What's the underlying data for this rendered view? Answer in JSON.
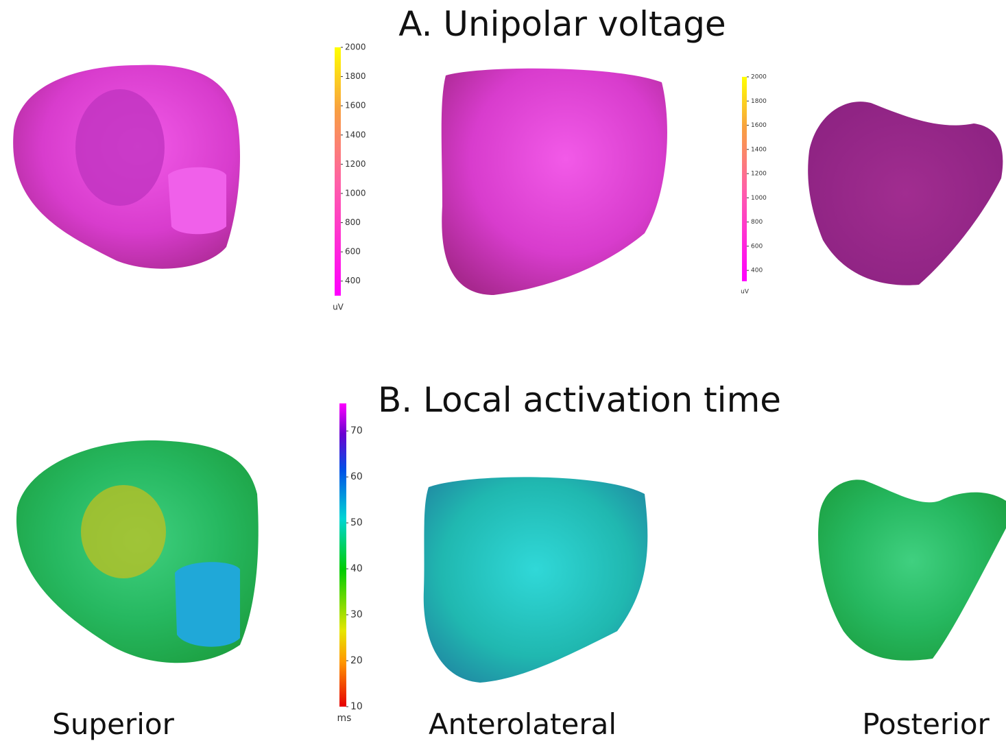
{
  "panel_a": {
    "title": "A. Unipolar voltage",
    "colorbars": [
      {
        "unit": "uV",
        "range": [
          300,
          2000
        ],
        "ticks": [
          400,
          600,
          800,
          1000,
          1200,
          1400,
          1600,
          1800,
          2000
        ]
      },
      {
        "unit": "uV",
        "range": [
          310,
          2000
        ],
        "ticks": [
          400,
          600,
          800,
          1000,
          1200,
          1400,
          1600,
          1800,
          2000
        ]
      }
    ]
  },
  "panel_b": {
    "title": "B. Local activation time",
    "colorbars": [
      {
        "unit": "ms",
        "range": [
          10,
          76
        ],
        "ticks": [
          10,
          20,
          30,
          40,
          50,
          60,
          70
        ]
      }
    ]
  },
  "views": [
    "Superior",
    "Anterolateral",
    "Posterior"
  ]
}
